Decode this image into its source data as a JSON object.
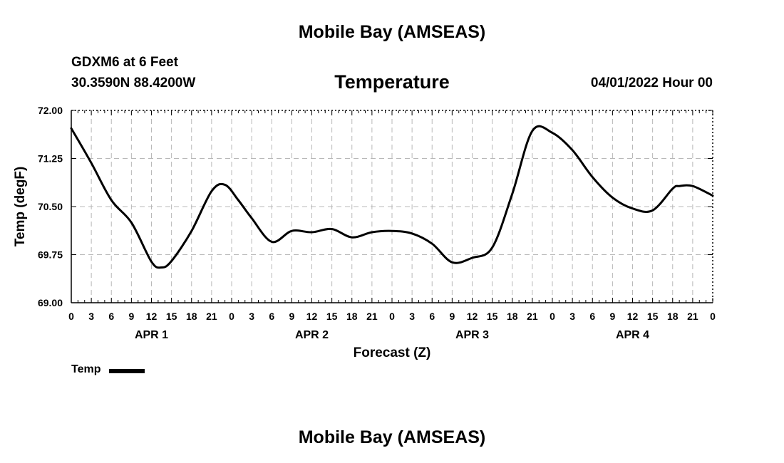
{
  "header": {
    "title_top": "Mobile Bay (AMSEAS)",
    "station": "GDXM6 at 6 Feet",
    "coords": "30.3590N  88.4200W",
    "chart_title": "Temperature",
    "run_time": "04/01/2022 Hour 00",
    "title_bottom": "Mobile Bay (AMSEAS)"
  },
  "legend": {
    "label": "Temp",
    "color": "#000000"
  },
  "chart_data": {
    "type": "line",
    "title": "Temperature",
    "xlabel": "Forecast (Z)",
    "ylabel": "Temp (degF)",
    "xlim": [
      0,
      96
    ],
    "ylim": [
      69.0,
      72.0
    ],
    "yticks": [
      69.0,
      69.75,
      70.5,
      71.25,
      72.0
    ],
    "ytick_labels": [
      "69.00",
      "69.75",
      "70.50",
      "71.25",
      "72.00"
    ],
    "xtick_hours": [
      0,
      3,
      6,
      9,
      12,
      15,
      18,
      21,
      24,
      27,
      30,
      33,
      36,
      39,
      42,
      45,
      48,
      51,
      54,
      57,
      60,
      63,
      66,
      69,
      72,
      75,
      78,
      81,
      84,
      87,
      90,
      93,
      96
    ],
    "xtick_labels": [
      "0",
      "3",
      "6",
      "9",
      "12",
      "15",
      "18",
      "21",
      "0",
      "3",
      "6",
      "9",
      "12",
      "15",
      "18",
      "21",
      "0",
      "3",
      "6",
      "9",
      "12",
      "15",
      "18",
      "21",
      "0",
      "3",
      "6",
      "9",
      "12",
      "15",
      "18",
      "21",
      "0"
    ],
    "day_labels": [
      {
        "hour": 12,
        "label": "APR 1"
      },
      {
        "hour": 36,
        "label": "APR 2"
      },
      {
        "hour": 60,
        "label": "APR 3"
      },
      {
        "hour": 84,
        "label": "APR 4"
      }
    ],
    "grid": true,
    "series": [
      {
        "name": "Temp",
        "color": "#000000",
        "x": [
          0,
          3,
          6,
          9,
          12,
          13.5,
          15,
          18,
          21,
          23,
          25,
          27,
          30,
          33,
          36,
          39,
          42,
          45,
          48,
          51,
          54,
          57,
          60,
          63,
          66,
          69,
          72,
          75,
          78,
          81,
          84,
          87,
          90,
          91,
          93,
          96
        ],
        "y": [
          71.72,
          71.18,
          70.6,
          70.25,
          69.64,
          69.55,
          69.65,
          70.12,
          70.74,
          70.84,
          70.6,
          70.32,
          69.95,
          70.12,
          70.1,
          70.15,
          70.02,
          70.1,
          70.12,
          70.08,
          69.92,
          69.63,
          69.7,
          69.86,
          70.7,
          71.68,
          71.65,
          71.38,
          70.96,
          70.64,
          70.47,
          70.44,
          70.78,
          70.82,
          70.82,
          70.67
        ]
      }
    ]
  }
}
